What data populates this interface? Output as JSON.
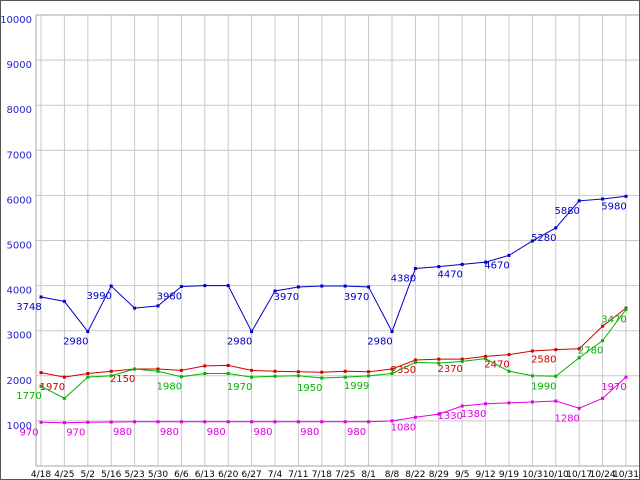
{
  "chart_data": {
    "type": "line",
    "title": "",
    "xlabel": "",
    "ylabel": "",
    "ylim": [
      0,
      10000
    ],
    "ytick_interval": 1000,
    "grid": true,
    "legend": "none",
    "grid_color": "#c9c9c9",
    "border_color": "#a6a6a6",
    "axis": {
      "y_label_color": "#2424c8",
      "x_label_color": "#000000"
    },
    "categories": [
      "4/18",
      "4/25",
      "5/2",
      "5/16",
      "5/23",
      "5/30",
      "6/6",
      "6/13",
      "6/20",
      "6/27",
      "7/4",
      "7/11",
      "7/18",
      "7/25",
      "8/1",
      "8/8",
      "8/22",
      "8/29",
      "9/5",
      "9/12",
      "9/19",
      "10/3",
      "10/10",
      "10/17",
      "10/24",
      "10/31"
    ],
    "series": [
      {
        "name": "blue",
        "color": "#0000c8",
        "values": [
          3748,
          3650,
          2980,
          3990,
          3500,
          3550,
          3980,
          4000,
          4000,
          2980,
          3880,
          3970,
          3990,
          3990,
          3970,
          2980,
          4380,
          4420,
          4470,
          4520,
          4670,
          4990,
          5280,
          5880,
          5920,
          5980
        ],
        "point_labels": [
          "3748",
          null,
          "2980",
          "3990",
          null,
          null,
          "3980",
          null,
          null,
          "2980",
          null,
          "3970",
          null,
          null,
          "3970",
          "2980",
          "4380",
          null,
          "4470",
          null,
          "4670",
          null,
          "5280",
          "5880",
          null,
          "5980"
        ]
      },
      {
        "name": "red",
        "color": "#d40000",
        "values": [
          2070,
          1970,
          2050,
          2100,
          2150,
          2150,
          2120,
          2220,
          2230,
          2120,
          2100,
          2090,
          2080,
          2100,
          2090,
          2150,
          2350,
          2370,
          2370,
          2430,
          2470,
          2550,
          2580,
          2600,
          3100,
          3500
        ],
        "point_labels": [
          null,
          "1970",
          null,
          null,
          "2150",
          null,
          null,
          null,
          null,
          null,
          null,
          null,
          null,
          null,
          null,
          null,
          "2350",
          null,
          "2370",
          null,
          "2470",
          null,
          "2580",
          null,
          null,
          null
        ]
      },
      {
        "name": "green",
        "color": "#00b400",
        "values": [
          1770,
          1500,
          1970,
          2000,
          2150,
          2100,
          1980,
          2050,
          2050,
          1970,
          1990,
          2000,
          1950,
          1970,
          1999,
          2050,
          2300,
          2280,
          2320,
          2380,
          2100,
          2000,
          1990,
          2400,
          2780,
          3470
        ],
        "point_labels": [
          "1770",
          null,
          null,
          null,
          null,
          null,
          "1980",
          null,
          null,
          "1970",
          null,
          null,
          "1950",
          null,
          "1999",
          null,
          null,
          null,
          null,
          null,
          null,
          null,
          "1990",
          null,
          "2780",
          "3470"
        ]
      },
      {
        "name": "magenta",
        "color": "#e000e0",
        "values": [
          970,
          960,
          970,
          975,
          980,
          980,
          980,
          980,
          980,
          980,
          980,
          980,
          980,
          980,
          980,
          1000,
          1080,
          1150,
          1330,
          1380,
          1400,
          1420,
          1440,
          1280,
          1500,
          1970
        ],
        "point_labels": [
          "970",
          null,
          "970",
          null,
          "980",
          null,
          "980",
          null,
          "980",
          null,
          "980",
          null,
          "980",
          null,
          "980",
          null,
          "1080",
          null,
          "1330",
          "1380",
          null,
          null,
          null,
          "1280",
          null,
          "1970"
        ]
      }
    ]
  }
}
